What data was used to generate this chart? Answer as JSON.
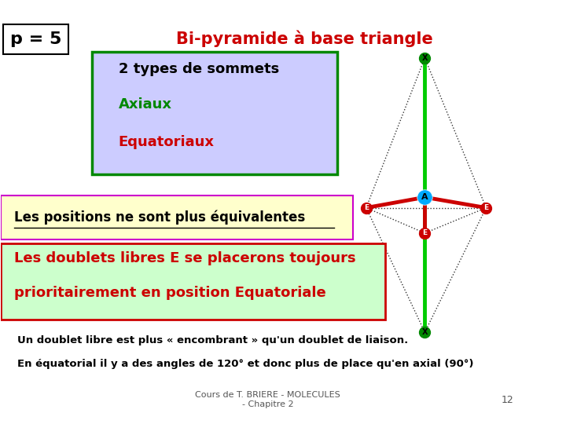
{
  "title_left": "p = 5",
  "title_right": "Bi-pyramide à base triangle",
  "box1_text": "2 types de sommets",
  "box1_line2": "Axiaux",
  "box1_line3": "Equatoriaux",
  "box2_text": "Les positions ne sont plus équivalentes",
  "box3_line1": "Les doublets libres E se placerons toujours",
  "box3_line2": "prioritairement en position Equatoriale",
  "footer1": "Un doublet libre est plus « encombrant » qu'un doublet de liaison.",
  "footer2": "En équatorial il y a des angles de 120° et donc plus de place qu'en axial (90°)",
  "footer3": "Cours de T. BRIERE - MOLECULES\n- Chapitre 2",
  "page_num": "12",
  "bg_color": "#ffffff",
  "title_right_color": "#cc0000",
  "title_left_color": "#000000",
  "box1_bg": "#ccccff",
  "box1_border": "#008800",
  "box1_text_color": "#000000",
  "box1_axiaux_color": "#008800",
  "box1_equa_color": "#cc0000",
  "box2_bg": "#ffffcc",
  "box2_border": "#cc00cc",
  "box3_bg": "#ccffcc",
  "box3_border": "#cc0000",
  "box3_text_color": "#cc0000",
  "mol_top_x_color": "#008800",
  "mol_bottom_x_color": "#008800",
  "mol_eq_color": "#cc0000",
  "mol_center_color": "#00aaff",
  "mol_axis_color": "#00cc00",
  "mol_bond_color": "#cc0000",
  "mol_dashed_color": "#333333"
}
